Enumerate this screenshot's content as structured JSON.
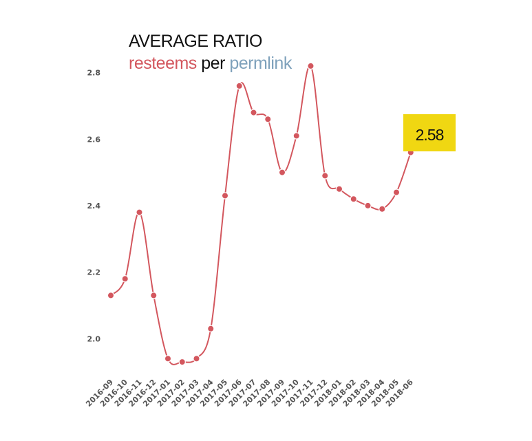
{
  "title": {
    "line1": "AVERAGE RATIO",
    "word_a": "resteems",
    "word_mid": " per ",
    "word_b": "permlink",
    "color_a": "#d3575e",
    "color_b": "#7ea1bb"
  },
  "callout": {
    "label": "2.58",
    "color": "#f0d712"
  },
  "chart_data": {
    "type": "line",
    "title": "AVERAGE RATIO resteems per permlink",
    "xlabel": "",
    "ylabel": "",
    "categories": [
      "2016-09",
      "2016-10",
      "2016-11",
      "2016-12",
      "2017-01",
      "2017-02",
      "2017-03",
      "2017-04",
      "2017-05",
      "2017-06",
      "2017-07",
      "2017-08",
      "2017-09",
      "2017-10",
      "2017-11",
      "2017-12",
      "2018-01",
      "2018-02",
      "2018-03",
      "2018-04",
      "2018-05",
      "2018-06"
    ],
    "series": [
      {
        "color": "#d3575e",
        "values": [
          2.13,
          2.18,
          2.38,
          2.13,
          1.94,
          1.93,
          1.94,
          2.03,
          2.43,
          2.76,
          2.68,
          2.66,
          2.5,
          2.61,
          2.82,
          2.49,
          2.45,
          2.42,
          2.4,
          2.39,
          2.44,
          2.56
        ]
      }
    ],
    "yticks": [
      "2.0",
      "2.2",
      "2.4",
      "2.6",
      "2.8"
    ],
    "ylim": [
      1.895,
      2.855
    ],
    "grid": false,
    "legend": "none"
  }
}
